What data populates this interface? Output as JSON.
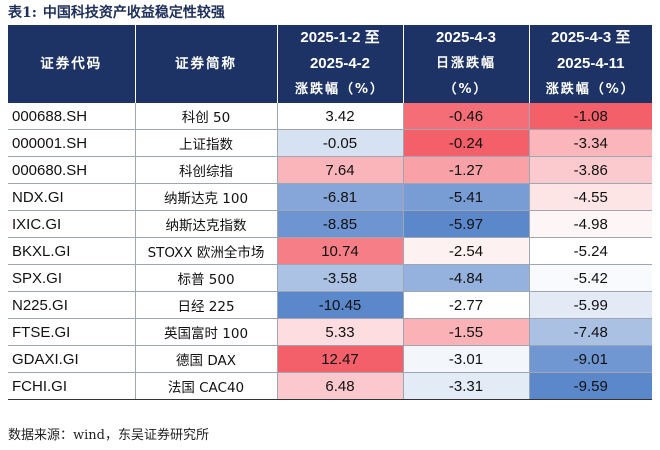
{
  "caption": {
    "label": "表1:",
    "title": "中国科技资产收益稳定性较强"
  },
  "headers": [
    {
      "lines": [
        "证券代码"
      ]
    },
    {
      "lines": [
        "证券简称"
      ]
    },
    {
      "lines": [
        "2025-1-2 至",
        "2025-4-2",
        "涨跌幅（%）"
      ]
    },
    {
      "lines": [
        "2025-4-3",
        "日涨跌幅",
        "（%）"
      ]
    },
    {
      "lines": [
        "2025-4-3 至",
        "2025-4-11",
        "涨跌幅（%）"
      ]
    }
  ],
  "rows": [
    {
      "code": "000688.SH",
      "name": "科创 50",
      "v1": "3.42",
      "v2": "-0.46",
      "v3": "-1.08"
    },
    {
      "code": "000001.SH",
      "name": "上证指数",
      "v1": "-0.05",
      "v2": "-0.24",
      "v3": "-3.34"
    },
    {
      "code": "000680.SH",
      "name": "科创综指",
      "v1": "7.64",
      "v2": "-1.27",
      "v3": "-3.86"
    },
    {
      "code": "NDX.GI",
      "name": "纳斯达克 100",
      "v1": "-6.81",
      "v2": "-5.41",
      "v3": "-4.55"
    },
    {
      "code": "IXIC.GI",
      "name": "纳斯达克指数",
      "v1": "-8.85",
      "v2": "-5.97",
      "v3": "-4.98"
    },
    {
      "code": "BKXL.GI",
      "name": "STOXX 欧洲全市场",
      "v1": "10.74",
      "v2": "-2.54",
      "v3": "-5.24"
    },
    {
      "code": "SPX.GI",
      "name": "标普 500",
      "v1": "-3.58",
      "v2": "-4.84",
      "v3": "-5.42"
    },
    {
      "code": "N225.GI",
      "name": "日经 225",
      "v1": "-10.45",
      "v2": "-2.77",
      "v3": "-5.99"
    },
    {
      "code": "FTSE.GI",
      "name": "英国富时 100",
      "v1": "5.33",
      "v2": "-1.55",
      "v3": "-7.48"
    },
    {
      "code": "GDAXI.GI",
      "name": "德国 DAX",
      "v1": "12.47",
      "v2": "-3.01",
      "v3": "-9.01"
    },
    {
      "code": "FCHI.GI",
      "name": "法国 CAC40",
      "v1": "6.48",
      "v2": "-3.31",
      "v3": "-9.59"
    }
  ],
  "source": {
    "label": "数据来源：",
    "text": "wind，东吴证券研究所"
  },
  "colors": {
    "header_bg": "#1d3366",
    "heat_red": "#f4606a",
    "heat_white": "#ffffff",
    "heat_blue": "#5b87cb"
  }
}
